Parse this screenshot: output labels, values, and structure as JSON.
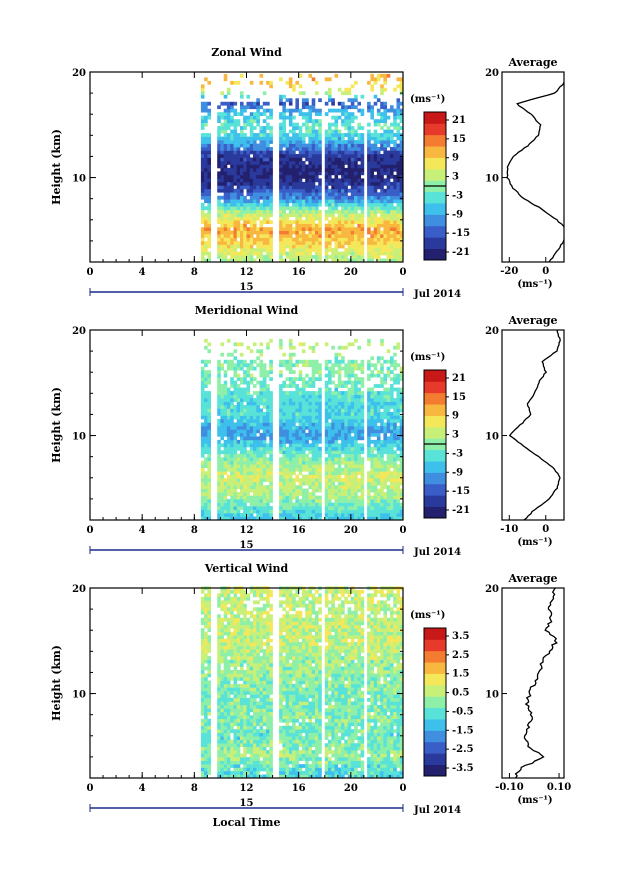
{
  "palette": [
    "#23206e",
    "#2a3a9c",
    "#3a5ec8",
    "#3f8ee0",
    "#3ec0ec",
    "#58e2d8",
    "#8ef0a8",
    "#c8f078",
    "#f4e85a",
    "#f8b840",
    "#f47c30",
    "#e83a2a",
    "#c81818"
  ],
  "panels": [
    {
      "title": "Zonal Wind",
      "ylabel": "Height (km)",
      "y_ticks": [
        "10",
        "20"
      ],
      "x_ticks": [
        "0",
        "4",
        "8",
        "12",
        "16",
        "20",
        "0"
      ],
      "x_sub": "15",
      "x_right": "Jul 2014",
      "xlabel": "",
      "unit": "(ms⁻¹)",
      "colorbar_ticks": [
        "21",
        "15",
        "9",
        "3",
        "-3",
        "-9",
        "-15",
        "-21"
      ],
      "avg_title": "Average",
      "avg_y_ticks": [
        "10",
        "20"
      ],
      "avg_x_ticks": [
        "-20",
        "0"
      ],
      "avg_unit": "(ms⁻¹)"
    },
    {
      "title": "Meridional Wind",
      "ylabel": "Height (km)",
      "y_ticks": [
        "10",
        "20"
      ],
      "x_ticks": [
        "0",
        "4",
        "8",
        "12",
        "16",
        "20",
        "0"
      ],
      "x_sub": "15",
      "x_right": "Jul 2014",
      "xlabel": "",
      "unit": "(ms⁻¹)",
      "colorbar_ticks": [
        "21",
        "15",
        "9",
        "3",
        "-3",
        "-9",
        "-15",
        "-21"
      ],
      "avg_title": "Average",
      "avg_y_ticks": [
        "10",
        "20"
      ],
      "avg_x_ticks": [
        "-10",
        "0"
      ],
      "avg_unit": "(ms⁻¹)"
    },
    {
      "title": "Vertical Wind",
      "ylabel": "Height (km)",
      "y_ticks": [
        "10",
        "20"
      ],
      "x_ticks": [
        "0",
        "4",
        "8",
        "12",
        "16",
        "20",
        "0"
      ],
      "x_sub": "15",
      "x_right": "Jul 2014",
      "xlabel": "Local Time",
      "unit": "(ms⁻¹)",
      "colorbar_ticks": [
        "3.5",
        "2.5",
        "1.5",
        "0.5",
        "-0.5",
        "-1.5",
        "-2.5",
        "-3.5"
      ],
      "avg_title": "Average",
      "avg_y_ticks": [
        "10",
        "20"
      ],
      "avg_x_ticks": [
        "-0.10",
        "0.10"
      ],
      "avg_unit": "(ms⁻¹)"
    }
  ],
  "chart_data": [
    {
      "type": "heatmap",
      "title": "Zonal Wind",
      "xlabel": "",
      "ylabel": "Height (km)",
      "xlim_local_time_h": [
        0,
        24
      ],
      "ylim": [
        2,
        20
      ],
      "data_start_time_h": 8.5,
      "data_gaps_time_h": [
        [
          9.2,
          9.6
        ],
        [
          13.8,
          14.3
        ],
        [
          17.6,
          17.9
        ],
        [
          20.8,
          21.1
        ]
      ],
      "colorbar": {
        "unit": "(ms⁻¹)",
        "range": [
          -24,
          24
        ]
      },
      "profile_km_ms": [
        [
          2,
          2
        ],
        [
          3,
          6
        ],
        [
          4,
          10
        ],
        [
          5,
          12
        ],
        [
          6,
          6
        ],
        [
          7,
          -2
        ],
        [
          8,
          -12
        ],
        [
          9,
          -18
        ],
        [
          10,
          -21
        ],
        [
          11,
          -21
        ],
        [
          12,
          -18
        ],
        [
          13,
          -10
        ],
        [
          14,
          -4
        ],
        [
          15,
          -3
        ],
        [
          16,
          -8
        ],
        [
          17,
          -16
        ],
        [
          18,
          5
        ],
        [
          19,
          10
        ],
        [
          20,
          12
        ]
      ]
    },
    {
      "type": "heatmap",
      "title": "Meridional Wind",
      "xlabel": "",
      "ylabel": "Height (km)",
      "xlim_local_time_h": [
        0,
        24
      ],
      "ylim": [
        2,
        20
      ],
      "data_start_time_h": 8.5,
      "data_gaps_time_h": [
        [
          9.2,
          9.6
        ],
        [
          13.8,
          14.3
        ],
        [
          17.6,
          17.9
        ],
        [
          20.8,
          21.1
        ]
      ],
      "colorbar": {
        "unit": "(ms⁻¹)",
        "range": [
          -24,
          24
        ]
      },
      "profile_km_ms": [
        [
          2,
          -6
        ],
        [
          3,
          -3
        ],
        [
          4,
          1
        ],
        [
          5,
          3
        ],
        [
          6,
          4
        ],
        [
          7,
          2
        ],
        [
          8,
          -2
        ],
        [
          9,
          -6
        ],
        [
          10,
          -10
        ],
        [
          11,
          -7
        ],
        [
          12,
          -4
        ],
        [
          13,
          -5
        ],
        [
          14,
          -3
        ],
        [
          15,
          -2
        ],
        [
          16,
          0
        ],
        [
          17,
          -1
        ],
        [
          18,
          3
        ],
        [
          19,
          4
        ],
        [
          20,
          3
        ]
      ]
    },
    {
      "type": "heatmap",
      "title": "Vertical Wind",
      "xlabel": "Local Time",
      "ylabel": "Height (km)",
      "xlim_local_time_h": [
        0,
        24
      ],
      "ylim": [
        2,
        20
      ],
      "data_start_time_h": 8.5,
      "data_gaps_time_h": [
        [
          9.2,
          9.6
        ],
        [
          13.8,
          14.3
        ],
        [
          17.6,
          17.9
        ],
        [
          20.8,
          21.1
        ]
      ],
      "colorbar": {
        "unit": "(ms⁻¹)",
        "range": [
          -4,
          4
        ]
      },
      "profile_km_ms": [
        [
          2,
          -0.08
        ],
        [
          3,
          -0.05
        ],
        [
          4,
          0.04
        ],
        [
          5,
          -0.02
        ],
        [
          6,
          -0.04
        ],
        [
          7,
          -0.02
        ],
        [
          8,
          -0.01
        ],
        [
          9,
          -0.03
        ],
        [
          10,
          -0.02
        ],
        [
          11,
          0.0
        ],
        [
          12,
          0.02
        ],
        [
          13,
          0.03
        ],
        [
          14,
          0.06
        ],
        [
          15,
          0.09
        ],
        [
          16,
          0.05
        ],
        [
          17,
          0.07
        ],
        [
          18,
          0.06
        ],
        [
          19,
          0.08
        ],
        [
          20,
          0.08
        ]
      ]
    }
  ]
}
